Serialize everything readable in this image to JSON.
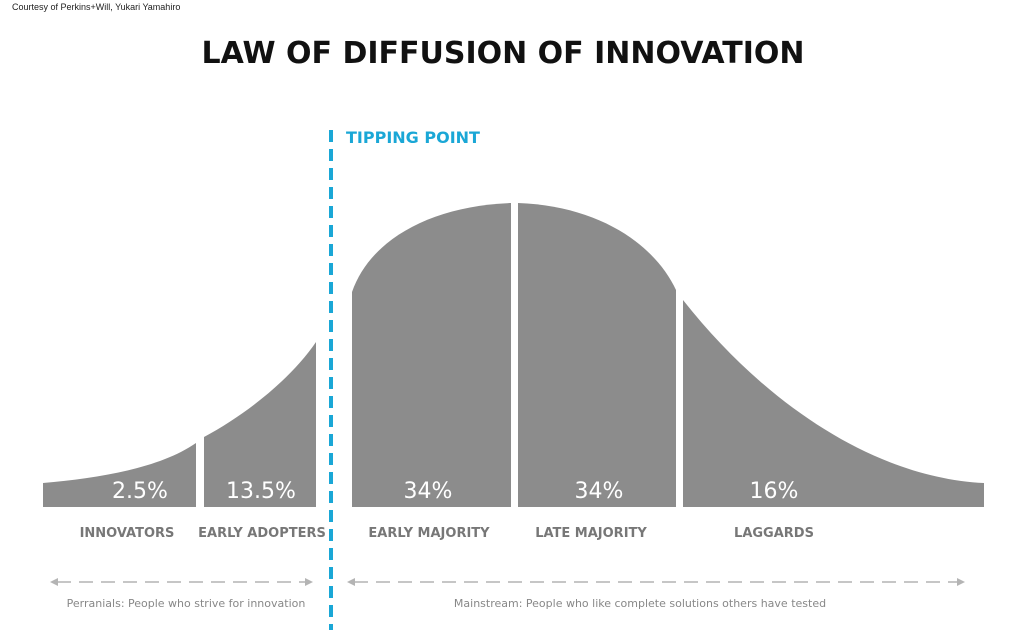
{
  "credit": "Courtesy of Perkins+Will, Yukari Yamahiro",
  "title": "LAW OF DIFFUSION OF INNOVATION",
  "tipping_point": {
    "label": "TIPPING POINT"
  },
  "segments": [
    {
      "name": "INNOVATORS",
      "percent": "2.5%"
    },
    {
      "name": "EARLY ADOPTERS",
      "percent": "13.5%"
    },
    {
      "name": "EARLY MAJORITY",
      "percent": "34%"
    },
    {
      "name": "LATE MAJORITY",
      "percent": "34%"
    },
    {
      "name": "LAGGARDS",
      "percent": "16%"
    }
  ],
  "groups": [
    {
      "name": "Perranials: People who strive for innovation"
    },
    {
      "name": "Mainstream: People who like complete solutions others have tested"
    }
  ],
  "colors": {
    "curve": "#8c8c8c",
    "tipping_line": "#1aa7d6",
    "arrow": "#b4b4b4"
  }
}
